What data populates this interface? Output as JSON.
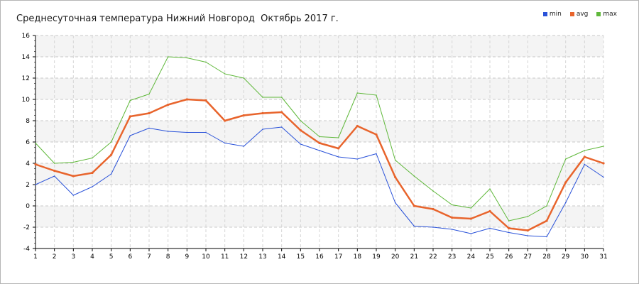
{
  "chart_data": {
    "type": "line",
    "title": "Среднесуточная температура Нижний Новгород  Октябрь 2017 г.",
    "xlabel": "",
    "ylabel": "",
    "x": [
      1,
      2,
      3,
      4,
      5,
      6,
      7,
      8,
      9,
      10,
      11,
      12,
      13,
      14,
      15,
      16,
      17,
      18,
      19,
      20,
      21,
      22,
      23,
      24,
      25,
      26,
      27,
      28,
      29,
      30,
      31
    ],
    "y_ticks": [
      -4,
      -2,
      0,
      2,
      4,
      6,
      8,
      10,
      12,
      14,
      16
    ],
    "ylim": [
      -4,
      16
    ],
    "xlim": [
      1,
      31
    ],
    "grid": true,
    "legend_position": "top-right",
    "series": [
      {
        "name": "min",
        "color": "#2a52d9",
        "values": [
          2.0,
          2.8,
          1.0,
          1.8,
          3.0,
          6.6,
          7.3,
          7.0,
          6.9,
          6.9,
          5.9,
          5.6,
          7.2,
          7.4,
          5.8,
          5.2,
          4.6,
          4.4,
          4.9,
          0.3,
          -1.9,
          -2.0,
          -2.2,
          -2.6,
          -2.1,
          -2.5,
          -2.8,
          -2.9,
          0.3,
          3.9,
          2.7
        ]
      },
      {
        "name": "avg",
        "color": "#e8642c",
        "values": [
          3.9,
          3.3,
          2.8,
          3.1,
          4.8,
          8.4,
          8.7,
          9.5,
          10.0,
          9.9,
          8.0,
          8.5,
          8.7,
          8.8,
          7.1,
          5.9,
          5.4,
          7.5,
          6.7,
          2.7,
          0.0,
          -0.3,
          -1.1,
          -1.2,
          -0.5,
          -2.1,
          -2.3,
          -1.4,
          2.2,
          4.6,
          4.0
        ]
      },
      {
        "name": "max",
        "color": "#5fb83a",
        "values": [
          5.9,
          4.0,
          4.1,
          4.5,
          6.0,
          9.9,
          10.5,
          14.0,
          13.9,
          13.5,
          12.4,
          12.0,
          10.2,
          10.2,
          8.0,
          6.5,
          6.4,
          10.6,
          10.4,
          4.3,
          2.8,
          1.4,
          0.1,
          -0.2,
          1.6,
          -1.4,
          -1.0,
          0.0,
          4.4,
          5.2,
          5.6
        ]
      }
    ]
  }
}
